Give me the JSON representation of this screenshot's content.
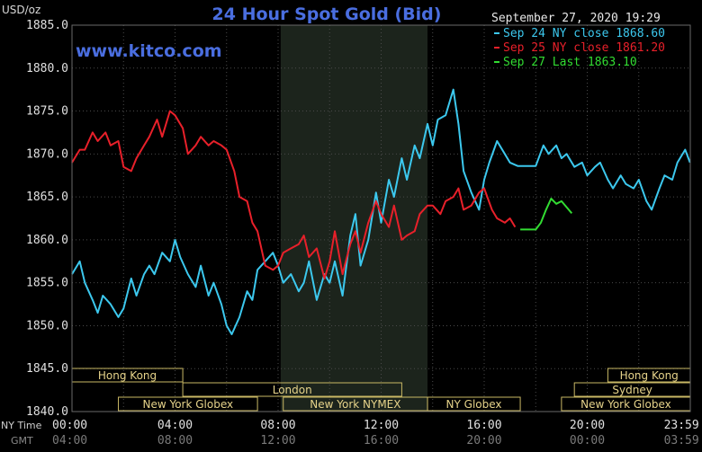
{
  "chart_data": {
    "type": "line",
    "title": "24 Hour Spot Gold (Bid)",
    "ylabel": "USD/oz",
    "watermark": "www.kitco.com",
    "timestamp": "September 27, 2020 19:29",
    "ylim": [
      1840,
      1885
    ],
    "yticks": [
      "1885.0",
      "1880.0",
      "1875.0",
      "1870.0",
      "1865.0",
      "1860.0",
      "1855.0",
      "1850.0",
      "1845.0",
      "1840.0"
    ],
    "xlim": [
      0,
      24
    ],
    "x_row_labels": {
      "ny": "NY Time",
      "gmt": "GMT"
    },
    "xticks_ny": [
      "00:00",
      "04:00",
      "08:00",
      "12:00",
      "16:00",
      "20:00",
      "23:59"
    ],
    "xticks_gmt": [
      "04:00",
      "08:00",
      "12:00",
      "16:00",
      "20:00",
      "00:00",
      "03:59"
    ],
    "grid": true,
    "shaded_region_hours": [
      8.1,
      13.8
    ],
    "legend": [
      {
        "label": "Sep 24 NY close 1868.60",
        "color": "#3cc8ee"
      },
      {
        "label": "Sep 25 NY close 1861.20",
        "color": "#e8202a"
      },
      {
        "label": "Sep 27 Last 1863.10",
        "color": "#32dc32"
      }
    ],
    "series": [
      {
        "name": "Sep 24",
        "color": "#3cc8ee",
        "x": [
          0,
          0.3,
          0.5,
          0.8,
          1,
          1.2,
          1.5,
          1.8,
          2,
          2.3,
          2.5,
          2.8,
          3,
          3.2,
          3.5,
          3.8,
          4,
          4.2,
          4.5,
          4.8,
          5,
          5.3,
          5.5,
          5.8,
          6,
          6.2,
          6.5,
          6.8,
          7,
          7.2,
          7.5,
          7.8,
          8,
          8.2,
          8.5,
          8.8,
          9,
          9.2,
          9.5,
          9.8,
          10,
          10.2,
          10.5,
          10.8,
          11,
          11.2,
          11.5,
          11.8,
          12,
          12.3,
          12.5,
          12.8,
          13,
          13.3,
          13.5,
          13.8,
          14,
          14.2,
          14.5,
          14.8,
          15,
          15.2,
          15.5,
          15.8,
          16,
          16.2,
          16.5,
          16.8,
          17,
          17.3,
          17.5,
          17.8,
          18,
          18.3,
          18.5,
          18.8,
          19,
          19.2,
          19.5,
          19.8,
          20,
          20.3,
          20.5,
          20.8,
          21,
          21.3,
          21.5,
          21.8,
          22,
          22.3,
          22.5,
          22.8,
          23,
          23.3,
          23.5,
          23.8,
          23.99
        ],
        "y": [
          1856,
          1857.5,
          1855,
          1853,
          1851.5,
          1853.5,
          1852.5,
          1851,
          1852,
          1855.5,
          1853.5,
          1856,
          1857,
          1856,
          1858.5,
          1857.5,
          1860,
          1858,
          1856,
          1854.5,
          1857,
          1853.5,
          1855,
          1852.5,
          1850,
          1849,
          1851,
          1854,
          1853,
          1856.5,
          1857.5,
          1858.5,
          1857,
          1855,
          1856,
          1854,
          1855,
          1857.5,
          1853,
          1856,
          1855,
          1857.5,
          1853.5,
          1860.5,
          1863,
          1857,
          1860,
          1865.5,
          1862,
          1867,
          1865,
          1869.5,
          1867,
          1871,
          1869.5,
          1873.5,
          1871,
          1874,
          1874.5,
          1877.5,
          1873.5,
          1868,
          1865.5,
          1863.5,
          1867,
          1869,
          1871.5,
          1870,
          1869,
          1868.6,
          1868.6,
          1868.6,
          1868.6,
          1871,
          1870,
          1871,
          1869.5,
          1870,
          1868.5,
          1869,
          1867.5,
          1868.5,
          1869,
          1867,
          1866,
          1867.5,
          1866.5,
          1866,
          1867,
          1864.5,
          1863.5,
          1866,
          1867.5,
          1867,
          1869,
          1870.5,
          1869
        ]
      },
      {
        "name": "Sep 25",
        "color": "#e8202a",
        "x": [
          0,
          0.3,
          0.5,
          0.8,
          1,
          1.3,
          1.5,
          1.8,
          2,
          2.3,
          2.5,
          2.8,
          3,
          3.3,
          3.5,
          3.8,
          4,
          4.3,
          4.5,
          4.8,
          5,
          5.3,
          5.5,
          5.8,
          6,
          6.3,
          6.5,
          6.8,
          7,
          7.2,
          7.5,
          7.8,
          8,
          8.2,
          8.5,
          8.8,
          9,
          9.2,
          9.5,
          9.8,
          10,
          10.2,
          10.5,
          10.8,
          11,
          11.2,
          11.5,
          11.8,
          12,
          12.3,
          12.5,
          12.8,
          13,
          13.3,
          13.5,
          13.8,
          14,
          14.3,
          14.5,
          14.8,
          15,
          15.2,
          15.5,
          15.8,
          16,
          16.3,
          16.5,
          16.8,
          17,
          17.2
        ],
        "y": [
          1869,
          1870.5,
          1870.5,
          1872.5,
          1871.5,
          1872.5,
          1871,
          1871.5,
          1868.5,
          1868,
          1869.5,
          1871,
          1872,
          1874,
          1872,
          1875,
          1874.5,
          1873,
          1870,
          1871,
          1872,
          1871,
          1871.5,
          1871,
          1870.5,
          1868,
          1865,
          1864.5,
          1862,
          1861,
          1857,
          1856.5,
          1857,
          1858.5,
          1859,
          1859.5,
          1860.5,
          1858,
          1859,
          1855.5,
          1857.5,
          1861,
          1856,
          1859.5,
          1861,
          1858.5,
          1862,
          1864.5,
          1863,
          1861.5,
          1864,
          1860,
          1860.5,
          1861,
          1863,
          1864,
          1864,
          1863,
          1864.5,
          1865,
          1866,
          1863.5,
          1864,
          1865.5,
          1866,
          1863.5,
          1862.5,
          1862,
          1862.5,
          1861.5
        ]
      },
      {
        "name": "Sep 27",
        "color": "#32dc32",
        "x": [
          17.4,
          17.6,
          17.8,
          18,
          18.2,
          18.4,
          18.6,
          18.8,
          19,
          19.2,
          19.4
        ],
        "y": [
          1861.2,
          1861.2,
          1861.2,
          1861.2,
          1862,
          1863.5,
          1864.8,
          1864.2,
          1864.5,
          1863.8,
          1863.1
        ]
      }
    ]
  },
  "sessions": [
    {
      "label": "Hong Kong",
      "start": 0,
      "end": 4.3,
      "row": 0
    },
    {
      "label": "London",
      "start": 4.3,
      "end": 12.8,
      "row": 1
    },
    {
      "label": "New York Globex",
      "start": 1.8,
      "end": 7.2,
      "row": 2
    },
    {
      "label": "New York NYMEX",
      "start": 8.2,
      "end": 13.8,
      "row": 2
    },
    {
      "label": "NY Globex",
      "start": 13.8,
      "end": 17.4,
      "row": 2
    },
    {
      "label": "Hong Kong",
      "start": 20.8,
      "end": 24,
      "row": 0
    },
    {
      "label": "Sydney",
      "start": 19.5,
      "end": 24,
      "row": 1
    },
    {
      "label": "New York Globex",
      "start": 19,
      "end": 24,
      "row": 2
    }
  ]
}
